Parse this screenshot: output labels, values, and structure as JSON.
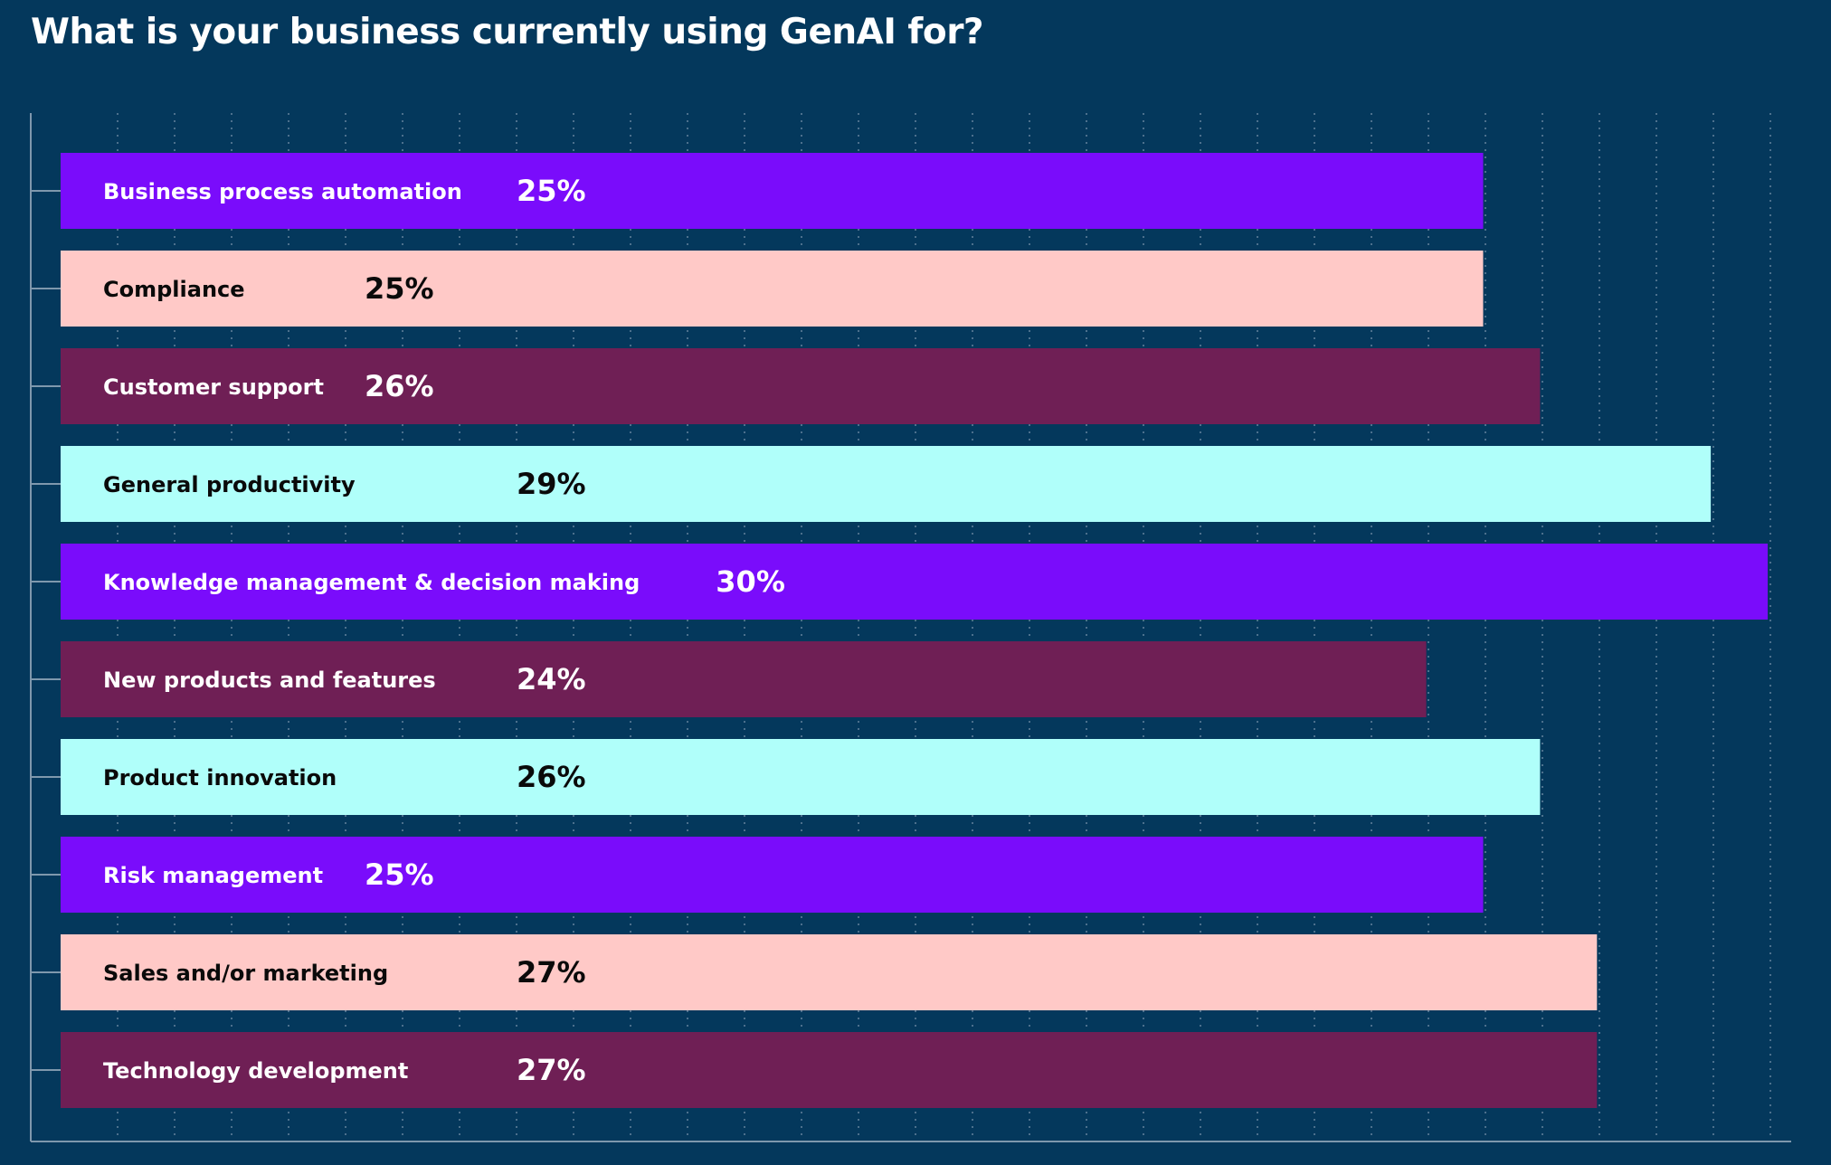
{
  "chart_data": {
    "type": "bar",
    "orientation": "horizontal",
    "title": "What is your business currently using GenAI for?",
    "categories": [
      "Business process automation",
      "Compliance",
      "Customer support",
      "General productivity",
      "Knowledge management & decision making",
      "New products and features",
      "Product innovation",
      "Risk management",
      "Sales and/or marketing",
      "Technology development"
    ],
    "values": [
      25,
      25,
      26,
      29,
      30,
      24,
      26,
      25,
      27,
      27
    ],
    "value_labels": [
      "25%",
      "25%",
      "26%",
      "29%",
      "30%",
      "24%",
      "26%",
      "25%",
      "27%",
      "27%"
    ],
    "unit": "%",
    "bar_colors": [
      "#7a0cfb",
      "#ffc9c7",
      "#6f1f55",
      "#b0fffa",
      "#7a0cfb",
      "#6f1f55",
      "#b0fffa",
      "#7a0cfb",
      "#ffc9c7",
      "#6f1f55"
    ],
    "label_colors": [
      "#ffffff",
      "#0a0a0a",
      "#ffffff",
      "#0a0a0a",
      "#ffffff",
      "#ffffff",
      "#0a0a0a",
      "#ffffff",
      "#0a0a0a",
      "#ffffff"
    ],
    "xlim": [
      0,
      31
    ],
    "xlabel": "",
    "ylabel": "",
    "grid": true,
    "grid_style": "dotted vertical",
    "legend": "none",
    "background": "#04385c"
  }
}
